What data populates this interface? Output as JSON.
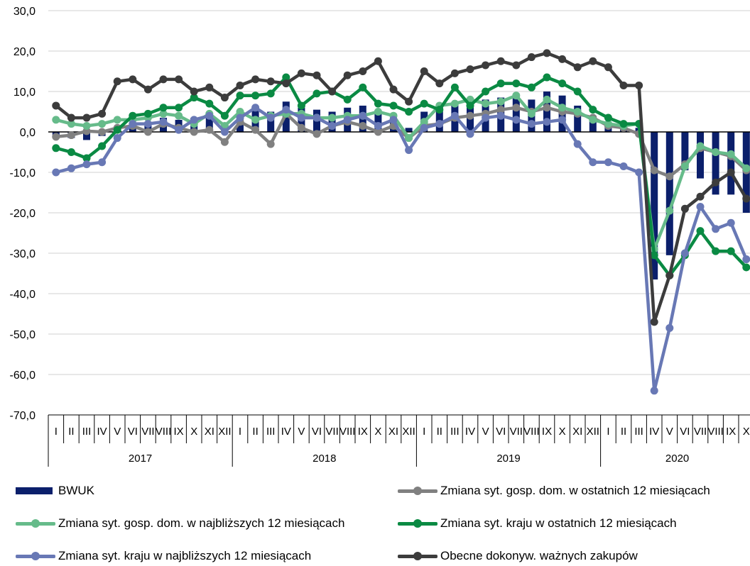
{
  "chart_data": {
    "type": "bar+line",
    "ylim": [
      -70,
      30
    ],
    "y_ticks": [
      "30,0",
      "20,0",
      "10,0",
      "0,0",
      "-10,0",
      "-20,0",
      "-30,0",
      "-40,0",
      "-50,0",
      "-60,0",
      "-70,0"
    ],
    "grid": true,
    "legend_position": "bottom",
    "month_labels": [
      "I",
      "II",
      "III",
      "IV",
      "V",
      "VI",
      "VII",
      "VIII",
      "IX",
      "X",
      "XI",
      "XII",
      "I",
      "II",
      "III",
      "IV",
      "V",
      "VI",
      "VII",
      "VIII",
      "IX",
      "X",
      "XI",
      "XII",
      "I",
      "II",
      "III",
      "IV",
      "V",
      "VI",
      "VII",
      "VIII",
      "IX",
      "X",
      "XI",
      "XII",
      "I",
      "II",
      "III",
      "IV",
      "V",
      "VI",
      "VII",
      "VIII",
      "IX",
      "X"
    ],
    "years": [
      "2017",
      "2018",
      "2019",
      "2020"
    ],
    "series": [
      {
        "name": "BWUK",
        "kind": "bar",
        "color": "#0B1F6B",
        "values": [
          -1.0,
          -1.5,
          -2.0,
          -1.0,
          0.5,
          2.0,
          2.5,
          3.5,
          3.0,
          3.5,
          4.5,
          2.0,
          4.0,
          5.5,
          5.0,
          7.5,
          6.0,
          5.5,
          5.0,
          6.0,
          6.5,
          5.0,
          4.5,
          1.0,
          5.0,
          6.5,
          7.0,
          7.0,
          8.0,
          8.5,
          9.0,
          8.0,
          10.0,
          9.0,
          6.5,
          4.0,
          2.5,
          1.5,
          1.0,
          -36.5,
          -30.5,
          -9.5,
          -11.5,
          -15.5,
          -15.5,
          -20.0
        ]
      },
      {
        "name": "Zmiana syt. gosp. dom. w ostatnich 12 miesiącach",
        "kind": "line",
        "color": "#808080",
        "values": [
          -1.2,
          -0.8,
          0.2,
          0.0,
          1.0,
          1.5,
          0.0,
          2.0,
          1.0,
          0.0,
          0.5,
          -2.5,
          2.5,
          0.5,
          -3.0,
          4.5,
          1.0,
          -0.5,
          1.5,
          2.5,
          1.5,
          0.0,
          1.5,
          -1.5,
          1.5,
          2.0,
          3.5,
          4.0,
          4.5,
          5.5,
          6.0,
          5.0,
          6.0,
          5.0,
          4.5,
          3.5,
          1.5,
          1.0,
          -0.5,
          -9.5,
          -11.0,
          -8.0,
          -4.0,
          -5.0,
          -6.0,
          -9.5
        ]
      },
      {
        "name": "Zmiana syt. gosp. dom. w najbliższych 12 miesiącach",
        "kind": "line",
        "color": "#66BB8A",
        "values": [
          3.0,
          2.0,
          1.5,
          2.0,
          3.0,
          3.0,
          3.5,
          4.5,
          4.0,
          2.0,
          4.5,
          1.5,
          5.0,
          3.0,
          4.0,
          4.5,
          4.5,
          3.5,
          3.5,
          4.0,
          4.0,
          5.0,
          4.0,
          -1.5,
          2.5,
          6.5,
          7.0,
          8.0,
          7.0,
          7.5,
          9.0,
          4.5,
          8.0,
          6.0,
          5.0,
          3.0,
          2.0,
          1.5,
          2.0,
          -29.0,
          -19.5,
          -8.5,
          -3.5,
          -5.0,
          -5.5,
          -9.0
        ]
      },
      {
        "name": "Zmiana syt. kraju w ostatnich 12 miesiącach",
        "kind": "line",
        "color": "#0A8A43",
        "values": [
          -4.0,
          -5.0,
          -6.5,
          -3.5,
          0.5,
          4.0,
          4.5,
          6.0,
          6.0,
          8.5,
          7.0,
          4.0,
          9.0,
          9.0,
          9.5,
          13.5,
          6.5,
          9.5,
          10.0,
          8.0,
          11.0,
          7.0,
          6.5,
          5.0,
          7.0,
          5.5,
          11.0,
          6.5,
          10.0,
          12.0,
          12.0,
          11.0,
          13.5,
          12.0,
          10.0,
          5.5,
          3.5,
          2.0,
          2.0,
          -30.5,
          -35.5,
          -30.5,
          -24.5,
          -29.5,
          -29.5,
          -33.5
        ]
      },
      {
        "name": "Zmiana syt. kraju w najbliższych 12 miesiącach",
        "kind": "line",
        "color": "#6878B5",
        "values": [
          -10.0,
          -9.0,
          -8.0,
          -7.5,
          -1.5,
          2.0,
          2.0,
          2.5,
          0.5,
          3.0,
          4.0,
          0.0,
          3.5,
          6.0,
          3.5,
          5.5,
          3.5,
          3.5,
          1.5,
          3.0,
          4.0,
          1.5,
          3.0,
          -4.5,
          1.0,
          2.0,
          4.0,
          -0.5,
          3.5,
          4.0,
          3.0,
          2.0,
          2.5,
          3.0,
          -3.0,
          -7.5,
          -7.5,
          -8.5,
          -10.0,
          -64.0,
          -48.5,
          -30.0,
          -18.5,
          -24.0,
          -22.5,
          -31.5
        ]
      },
      {
        "name": "Obecne dokonyw. ważnych zakupów",
        "kind": "line",
        "color": "#3C3C3C",
        "values": [
          6.5,
          3.5,
          3.5,
          4.5,
          12.5,
          13.0,
          10.5,
          13.0,
          13.0,
          10.0,
          11.0,
          8.5,
          11.5,
          13.0,
          12.5,
          12.0,
          14.5,
          14.0,
          10.0,
          14.0,
          15.0,
          17.5,
          10.5,
          7.5,
          15.0,
          12.0,
          14.5,
          15.5,
          16.5,
          17.5,
          16.5,
          18.5,
          19.5,
          18.0,
          16.0,
          17.5,
          16.0,
          11.5,
          11.5,
          -47.0,
          -35.5,
          -19.0,
          -16.0,
          -12.5,
          -10.0,
          -16.5
        ]
      }
    ]
  }
}
